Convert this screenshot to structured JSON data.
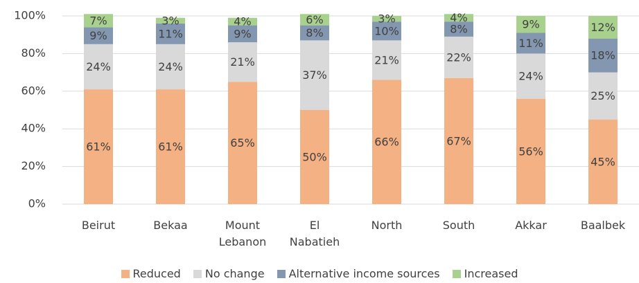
{
  "chart_data": {
    "type": "stacked_bar",
    "categories": [
      "Beirut",
      "Bekaa",
      "Mount Lebanon",
      "El Nabatieh",
      "North",
      "South",
      "Akkar",
      "Baalbek"
    ],
    "series": [
      {
        "name": "Reduced",
        "color": "#f4b183",
        "values": [
          61,
          61,
          65,
          50,
          66,
          67,
          56,
          45
        ],
        "value_labels": [
          "61%",
          "61%",
          "65%",
          "50%",
          "66%",
          "67%",
          "56%",
          "45%"
        ]
      },
      {
        "name": "No change",
        "color": "#d9d9d9",
        "values": [
          24,
          24,
          21,
          37,
          21,
          22,
          24,
          25
        ],
        "value_labels": [
          "24%",
          "24%",
          "21%",
          "37%",
          "21%",
          "22%",
          "24%",
          "25%"
        ]
      },
      {
        "name": "Alternative income sources",
        "color": "#8497b0",
        "values": [
          9,
          11,
          9,
          8,
          10,
          8,
          11,
          18
        ],
        "value_labels": [
          "9%",
          "11%",
          "9%",
          "8%",
          "10%",
          "8%",
          "11%",
          "18%"
        ]
      },
      {
        "name": "Increased",
        "color": "#a9d18e",
        "values": [
          7,
          3,
          4,
          6,
          3,
          4,
          9,
          12
        ],
        "value_labels": [
          "7%",
          "3%",
          "4%",
          "6%",
          "3%",
          "4%",
          "9%",
          "12%"
        ]
      }
    ],
    "ylim": [
      0,
      100
    ],
    "yticks": [
      {
        "value": 0,
        "label": "0%"
      },
      {
        "value": 20,
        "label": "20%"
      },
      {
        "value": 40,
        "label": "40%"
      },
      {
        "value": 60,
        "label": "60%"
      },
      {
        "value": 80,
        "label": "80%"
      },
      {
        "value": 100,
        "label": "100%"
      }
    ],
    "grid": true,
    "legend": "bottom"
  }
}
